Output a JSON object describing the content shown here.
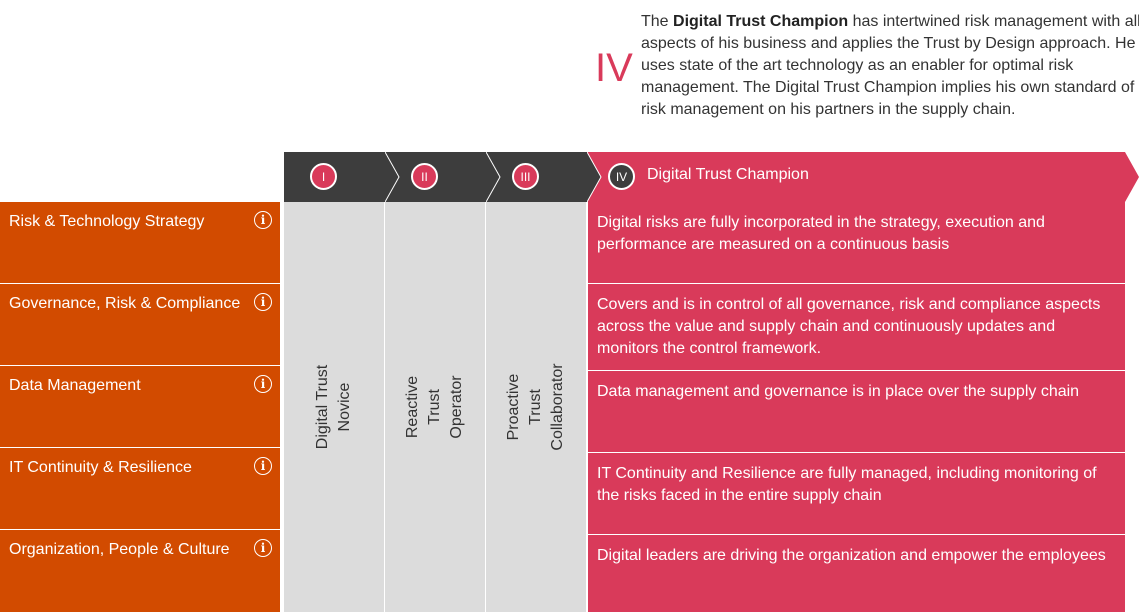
{
  "intro": {
    "numeral": "IV",
    "title_bold": "Digital Trust Champion",
    "line1_rest": " has intertwined risk management with all",
    "line2": "aspects of his business and applies the Trust by Design approach. He",
    "line3": "uses state of the art technology as an enabler for optimal risk",
    "line4": "management. The Digital Trust Champion implies his own standard of",
    "line5": "risk management on his partners in the supply chain."
  },
  "header": {
    "stages": [
      {
        "numeral": "I"
      },
      {
        "numeral": "II"
      },
      {
        "numeral": "III"
      },
      {
        "numeral": "IV",
        "title": "Digital Trust Champion"
      }
    ]
  },
  "stage_labels": [
    [
      "Digital Trust",
      "Novice"
    ],
    [
      "Reactive",
      "Trust",
      "Operator"
    ],
    [
      "Proactive",
      "Trust",
      "Collaborator"
    ]
  ],
  "categories": [
    {
      "label": "Risk & Technology Strategy",
      "icon": "info-icon"
    },
    {
      "label": "Governance, Risk & Compliance",
      "icon": "info-icon"
    },
    {
      "label": "Data Management",
      "icon": "info-icon"
    },
    {
      "label": "IT Continuity & Resilience",
      "icon": "info-icon"
    },
    {
      "label": "Organization, People & Culture",
      "icon": "info-icon"
    }
  ],
  "descriptions": [
    [
      "Digital risks are fully incorporated in the strategy, execution and",
      "performance are measured on a continuous basis"
    ],
    [
      "Covers and is in control of all governance, risk and compliance aspects",
      "across the value and supply chain and continuously updates and",
      "monitors the control framework."
    ],
    [
      "Data management and governance is in place over the supply chain"
    ],
    [
      "IT Continuity and Resilience are fully managed, including monitoring of",
      "the risks faced in the entire supply chain"
    ],
    [
      "Digital leaders are driving the organization and empower the employees"
    ]
  ],
  "info_glyph": "i",
  "colors": {
    "category": "#d24b00",
    "champion": "#d93a5a",
    "dark_header": "#3d3d3d",
    "stage_column": "#dcdcdc"
  }
}
